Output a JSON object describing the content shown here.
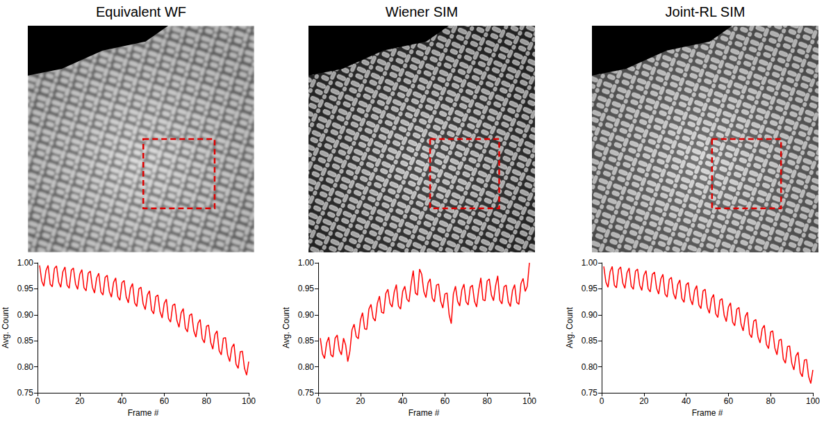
{
  "chart_data": [
    {
      "type": "line",
      "title": "Equivalent WF",
      "xlabel": "Frame #",
      "ylabel": "Avg. Count",
      "color": "#ff0000",
      "line_style": "solid",
      "grid": false,
      "xlim": [
        0,
        100
      ],
      "xticks": [
        0,
        20,
        40,
        60,
        80,
        100
      ],
      "ylim": [
        0.75,
        1
      ],
      "yticks": [
        0.75,
        {
          "value": 0.8,
          "label": "0.80"
        },
        0.85,
        {
          "value": 0.9,
          "label": "0.90"
        },
        0.95,
        {
          "value": 1,
          "label": "1.00"
        }
      ],
      "x": [
        1,
        2,
        3,
        4,
        5,
        6,
        7,
        8,
        9,
        10,
        11,
        12,
        13,
        14,
        15,
        16,
        17,
        18,
        19,
        20,
        21,
        22,
        23,
        24,
        25,
        26,
        27,
        28,
        29,
        30,
        31,
        32,
        33,
        34,
        35,
        36,
        37,
        38,
        39,
        40,
        41,
        42,
        43,
        44,
        45,
        46,
        47,
        48,
        49,
        50,
        51,
        52,
        53,
        54,
        55,
        56,
        57,
        58,
        59,
        60,
        61,
        62,
        63,
        64,
        65,
        66,
        67,
        68,
        69,
        70,
        71,
        72,
        73,
        74,
        75,
        76,
        77,
        78,
        79,
        80,
        81,
        82,
        83,
        84,
        85,
        86,
        87,
        88,
        89,
        90,
        91,
        92,
        93,
        94,
        95,
        96,
        97,
        98,
        99,
        100
      ],
      "values": [
        0.995,
        0.965,
        0.955,
        0.985,
        0.995,
        0.959,
        0.954,
        0.989,
        0.994,
        0.963,
        0.953,
        0.983,
        0.992,
        0.957,
        0.951,
        0.986,
        0.99,
        0.959,
        0.949,
        0.978,
        0.987,
        0.952,
        0.946,
        0.98,
        0.984,
        0.953,
        0.942,
        0.971,
        0.98,
        0.944,
        0.938,
        0.972,
        0.976,
        0.945,
        0.934,
        0.962,
        0.971,
        0.935,
        0.928,
        0.962,
        0.966,
        0.934,
        0.923,
        0.951,
        0.96,
        0.923,
        0.916,
        0.95,
        0.953,
        0.921,
        0.91,
        0.938,
        0.946,
        0.909,
        0.902,
        0.935,
        0.938,
        0.906,
        0.894,
        0.922,
        0.93,
        0.893,
        0.886,
        0.918,
        0.921,
        0.889,
        0.876,
        0.904,
        0.912,
        0.874,
        0.867,
        0.899,
        0.902,
        0.869,
        0.857,
        0.884,
        0.891,
        0.854,
        0.846,
        0.878,
        0.88,
        0.847,
        0.834,
        0.862,
        0.869,
        0.831,
        0.823,
        0.855,
        0.856,
        0.823,
        0.81,
        0.837,
        0.844,
        0.805,
        0.797,
        0.829,
        0.83,
        0.797,
        0.784,
        0.81
      ]
    },
    {
      "type": "line",
      "title": "Wiener SIM",
      "xlabel": "Frame #",
      "ylabel": "Avg. Count",
      "color": "#ff0000",
      "line_style": "solid",
      "grid": false,
      "xlim": [
        0,
        100
      ],
      "xticks": [
        0,
        20,
        40,
        60,
        80,
        100
      ],
      "ylim": [
        0.75,
        1
      ],
      "yticks": [
        0.75,
        {
          "value": 0.8,
          "label": "0.80"
        },
        0.85,
        {
          "value": 0.9,
          "label": "0.90"
        },
        0.95,
        {
          "value": 1,
          "label": "1.00"
        }
      ],
      "x": [
        1,
        2,
        3,
        4,
        5,
        6,
        7,
        8,
        9,
        10,
        11,
        12,
        13,
        14,
        15,
        16,
        17,
        18,
        19,
        20,
        21,
        22,
        23,
        24,
        25,
        26,
        27,
        28,
        29,
        30,
        31,
        32,
        33,
        34,
        35,
        36,
        37,
        38,
        39,
        40,
        41,
        42,
        43,
        44,
        45,
        46,
        47,
        48,
        49,
        50,
        51,
        52,
        53,
        54,
        55,
        56,
        57,
        58,
        59,
        60,
        61,
        62,
        63,
        64,
        65,
        66,
        67,
        68,
        69,
        70,
        71,
        72,
        73,
        74,
        75,
        76,
        77,
        78,
        79,
        80,
        81,
        82,
        83,
        84,
        85,
        86,
        87,
        88,
        89,
        90,
        91,
        92,
        93,
        94,
        95,
        96,
        97,
        98,
        99,
        100
      ],
      "values": [
        0.855,
        0.825,
        0.816,
        0.846,
        0.857,
        0.823,
        0.819,
        0.855,
        0.861,
        0.832,
        0.823,
        0.855,
        0.842,
        0.81,
        0.83,
        0.871,
        0.882,
        0.858,
        0.854,
        0.89,
        0.904,
        0.873,
        0.872,
        0.911,
        0.92,
        0.894,
        0.888,
        0.922,
        0.936,
        0.905,
        0.903,
        0.941,
        0.949,
        0.922,
        0.915,
        0.944,
        0.958,
        0.917,
        0.911,
        0.945,
        0.955,
        0.93,
        0.925,
        0.96,
        0.985,
        0.942,
        0.938,
        0.988,
        0.978,
        0.945,
        0.933,
        0.961,
        0.969,
        0.932,
        0.925,
        0.957,
        0.959,
        0.926,
        0.913,
        0.94,
        0.942,
        0.9,
        0.883,
        0.94,
        0.955,
        0.926,
        0.917,
        0.948,
        0.959,
        0.925,
        0.919,
        0.953,
        0.957,
        0.926,
        0.915,
        0.948,
        0.971,
        0.929,
        0.927,
        0.965,
        0.969,
        0.938,
        0.927,
        0.956,
        0.975,
        0.928,
        0.921,
        0.954,
        0.957,
        0.925,
        0.916,
        0.947,
        0.958,
        0.924,
        0.92,
        0.96,
        0.97,
        0.945,
        0.955,
        1.0
      ]
    },
    {
      "type": "line",
      "title": "Joint-RL SIM",
      "xlabel": "Frame #",
      "ylabel": "Avg. Count",
      "color": "#ff0000",
      "line_style": "solid",
      "grid": false,
      "xlim": [
        0,
        100
      ],
      "xticks": [
        0,
        20,
        40,
        60,
        80,
        100
      ],
      "ylim": [
        0.75,
        1
      ],
      "yticks": [
        0.75,
        {
          "value": 0.8,
          "label": "0.80"
        },
        0.85,
        {
          "value": 0.9,
          "label": "0.90"
        },
        0.95,
        {
          "value": 1,
          "label": "1.00"
        }
      ],
      "x": [
        1,
        2,
        3,
        4,
        5,
        6,
        7,
        8,
        9,
        10,
        11,
        12,
        13,
        14,
        15,
        16,
        17,
        18,
        19,
        20,
        21,
        22,
        23,
        24,
        25,
        26,
        27,
        28,
        29,
        30,
        31,
        32,
        33,
        34,
        35,
        36,
        37,
        38,
        39,
        40,
        41,
        42,
        43,
        44,
        45,
        46,
        47,
        48,
        49,
        50,
        51,
        52,
        53,
        54,
        55,
        56,
        57,
        58,
        59,
        60,
        61,
        62,
        63,
        64,
        65,
        66,
        67,
        68,
        69,
        70,
        71,
        72,
        73,
        74,
        75,
        76,
        77,
        78,
        79,
        80,
        81,
        82,
        83,
        84,
        85,
        86,
        87,
        88,
        89,
        90,
        91,
        92,
        93,
        94,
        95,
        96,
        97,
        98,
        99,
        100
      ],
      "values": [
        0.993,
        0.963,
        0.953,
        0.983,
        0.993,
        0.957,
        0.952,
        0.987,
        0.992,
        0.961,
        0.951,
        0.981,
        0.99,
        0.955,
        0.949,
        0.984,
        0.988,
        0.957,
        0.947,
        0.976,
        0.985,
        0.95,
        0.944,
        0.978,
        0.982,
        0.951,
        0.94,
        0.969,
        0.978,
        0.94,
        0.934,
        0.968,
        0.972,
        0.941,
        0.93,
        0.958,
        0.967,
        0.931,
        0.924,
        0.958,
        0.962,
        0.93,
        0.919,
        0.947,
        0.956,
        0.919,
        0.912,
        0.946,
        0.949,
        0.914,
        0.903,
        0.931,
        0.939,
        0.902,
        0.895,
        0.928,
        0.931,
        0.899,
        0.887,
        0.915,
        0.923,
        0.886,
        0.879,
        0.911,
        0.914,
        0.882,
        0.869,
        0.897,
        0.905,
        0.863,
        0.856,
        0.888,
        0.891,
        0.858,
        0.846,
        0.873,
        0.88,
        0.843,
        0.835,
        0.867,
        0.869,
        0.836,
        0.823,
        0.851,
        0.853,
        0.815,
        0.807,
        0.839,
        0.84,
        0.807,
        0.794,
        0.821,
        0.828,
        0.789,
        0.781,
        0.813,
        0.814,
        0.781,
        0.768,
        0.794
      ]
    }
  ]
}
